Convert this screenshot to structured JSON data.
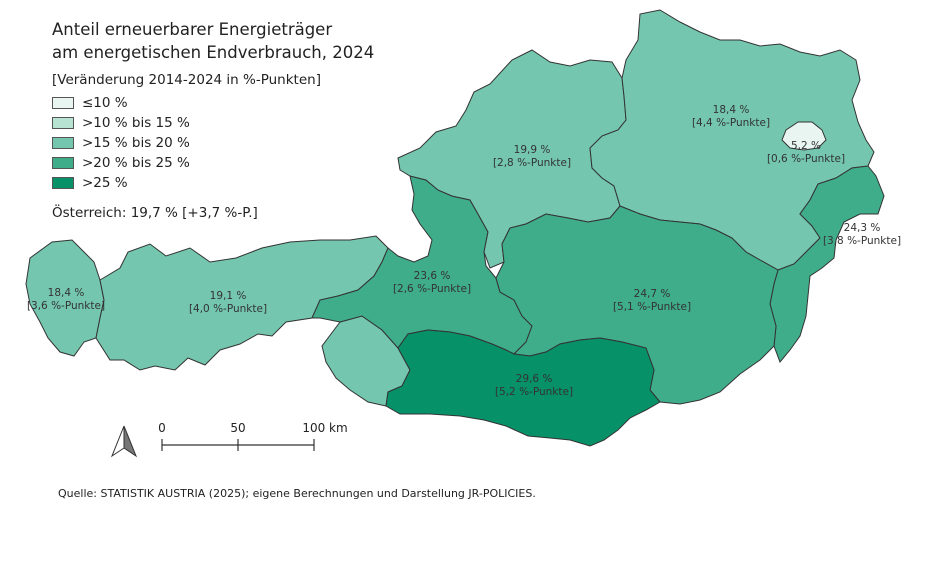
{
  "title_line1": "Anteil erneuerbarer Energieträger",
  "title_line2": "am energetischen Endverbrauch, 2024",
  "legend_title": "[Veränderung 2014-2024 in %-Punkten]",
  "legend": [
    {
      "label": "≤10 %",
      "color": "#e8f5f0"
    },
    {
      "label": ">10 % bis 15 %",
      "color": "#b7e3d2"
    },
    {
      "label": ">15 % bis 20 %",
      "color": "#74c7ae"
    },
    {
      "label": ">20 % bis 25 %",
      "color": "#3fac8a"
    },
    {
      "label": ">25 %",
      "color": "#079168"
    }
  ],
  "austria_total": "Österreich: 19,7 %  [+3,7 %-P.]",
  "regions": [
    {
      "id": "vorarlberg",
      "value": "18,4 %",
      "change": "[3,6 %-Punkte]",
      "color": "#74c7ae"
    },
    {
      "id": "tirol",
      "value": "19,1 %",
      "change": "[4,0 %-Punkte]",
      "color": "#74c7ae"
    },
    {
      "id": "salzburg",
      "value": "23,6 %",
      "change": "[2,6 %-Punkte]",
      "color": "#3fac8a"
    },
    {
      "id": "oberoesterreich",
      "value": "19,9 %",
      "change": "[2,8 %-Punkte]",
      "color": "#74c7ae"
    },
    {
      "id": "niederoesterreich",
      "value": "18,4 %",
      "change": "[4,4 %-Punkte]",
      "color": "#74c7ae"
    },
    {
      "id": "wien",
      "value": "5,2 %",
      "change": "[0,6 %-Punkte]",
      "color": "#e8f5f0"
    },
    {
      "id": "burgenland",
      "value": "24,3 %",
      "change": "[3,8 %-Punkte]",
      "color": "#3fac8a"
    },
    {
      "id": "steiermark",
      "value": "24,7 %",
      "change": "[5,1 %-Punkte]",
      "color": "#3fac8a"
    },
    {
      "id": "kaernten",
      "value": "29,6 %",
      "change": "[5,2 %-Punkte]",
      "color": "#079168"
    },
    {
      "id": "osttirol",
      "value": "",
      "change": "",
      "color": "#74c7ae"
    }
  ],
  "scale": {
    "ticks": [
      "0",
      "50",
      "100 km"
    ]
  },
  "north_arrow": "north-arrow-icon",
  "source": "Quelle: STATISTIK AUSTRIA (2025); eigene Berechnungen und Darstellung JR-POLICIES."
}
